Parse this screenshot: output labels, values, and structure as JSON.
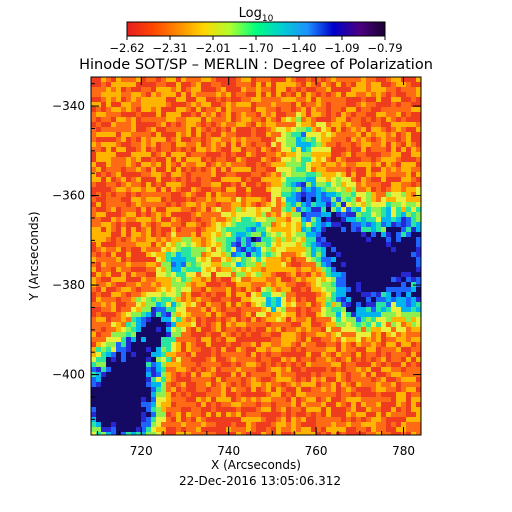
{
  "title": "Hinode SOT/SP – MERLIN : Degree of Polarization",
  "timestamp": "22-Dec-2016 13:05:06.312",
  "colorbar": {
    "label_base": "Log",
    "label_sub": "10",
    "ticks": [
      "−2.62",
      "−2.31",
      "−2.01",
      "−1.70",
      "−1.40",
      "−1.09",
      "−0.79"
    ],
    "range": [
      -2.62,
      -0.79
    ],
    "colormap": [
      "#e61e1e",
      "#ff4500",
      "#ff8c00",
      "#ffd700",
      "#adff2f",
      "#00ff7f",
      "#00ced1",
      "#1e90ff",
      "#0000cd",
      "#4b0082",
      "#1a0033"
    ]
  },
  "axes": {
    "x_label": "X (Arcseconds)",
    "y_label": "Y (Arcseconds)",
    "x_ticks": [
      "720",
      "740",
      "760",
      "780"
    ],
    "x_tick_values": [
      720,
      740,
      760,
      780
    ],
    "x_range": [
      708.5,
      784
    ],
    "y_ticks": [
      "−340",
      "−360",
      "−380",
      "−400"
    ],
    "y_tick_values": [
      -340,
      -360,
      -380,
      -400
    ],
    "y_range": [
      -413.5,
      -333.5
    ]
  },
  "colors": {
    "background_field": "#f03c1e",
    "high_polarization": "#1e1ec8"
  }
}
